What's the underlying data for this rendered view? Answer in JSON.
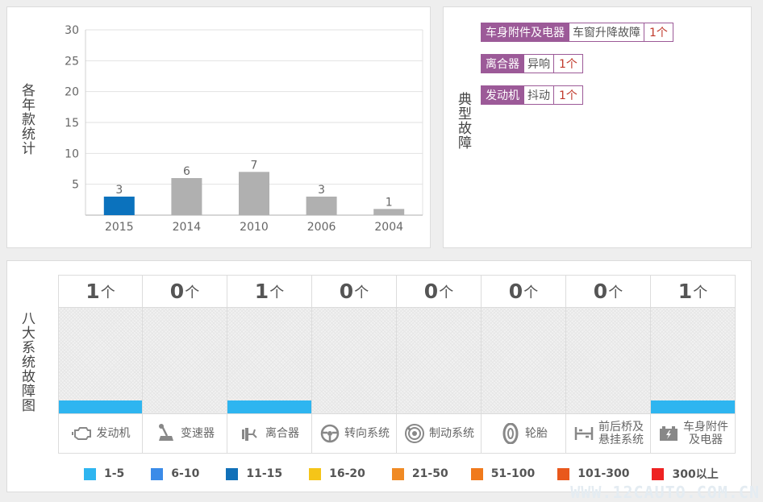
{
  "year_panel": {
    "label": "各年款统计"
  },
  "chart_data": {
    "type": "bar",
    "categories": [
      "2015",
      "2014",
      "2010",
      "2006",
      "2004"
    ],
    "values": [
      3,
      6,
      7,
      3,
      1
    ],
    "bar_colors": [
      "#0b72bd",
      "#b0b0b0",
      "#b0b0b0",
      "#b0b0b0",
      "#b0b0b0"
    ],
    "yticks": [
      5,
      10,
      15,
      20,
      25,
      30
    ],
    "ylim": [
      0,
      30
    ],
    "grid": true,
    "title": "",
    "xlabel": "",
    "ylabel": ""
  },
  "typical_panel": {
    "label": "典型故障",
    "faults": [
      {
        "category": "车身附件及电器",
        "item": "车窗升降故障",
        "count": "1个"
      },
      {
        "category": "离合器",
        "item": "异响",
        "count": "1个"
      },
      {
        "category": "发动机",
        "item": "抖动",
        "count": "1个"
      }
    ]
  },
  "systems_panel": {
    "label": "八大系统故障图",
    "unit": "个",
    "systems": [
      {
        "count": "1",
        "name": "发动机",
        "icon": "engine-icon",
        "level": 0.12
      },
      {
        "count": "0",
        "name": "变速器",
        "icon": "gearbox-icon",
        "level": 0
      },
      {
        "count": "1",
        "name": "离合器",
        "icon": "clutch-icon",
        "level": 0.12
      },
      {
        "count": "0",
        "name": "转向系统",
        "icon": "steering-wheel-icon",
        "level": 0
      },
      {
        "count": "0",
        "name": "制动系统",
        "icon": "brake-disc-icon",
        "level": 0
      },
      {
        "count": "0",
        "name": "轮胎",
        "icon": "tire-icon",
        "level": 0
      },
      {
        "count": "0",
        "name": "前后桥及悬挂系统",
        "name_lines": [
          "前后桥及",
          "悬挂系统"
        ],
        "icon": "axle-icon",
        "level": 0
      },
      {
        "count": "1",
        "name": "车身附件及电器",
        "name_lines": [
          "车身附件",
          "及电器"
        ],
        "icon": "battery-icon",
        "level": 0.12
      }
    ],
    "bar_color": "#2eb5f0"
  },
  "legend": [
    {
      "label": "1-5",
      "color": "#2eb5f0"
    },
    {
      "label": "6-10",
      "color": "#3b8be8"
    },
    {
      "label": "11-15",
      "color": "#1170b8"
    },
    {
      "label": "16-20",
      "color": "#f5c518"
    },
    {
      "label": "21-50",
      "color": "#f08a24"
    },
    {
      "label": "51-100",
      "color": "#f07a1c"
    },
    {
      "label": "101-300",
      "color": "#e9581c"
    },
    {
      "label": "300以上",
      "color": "#ee2222"
    }
  ],
  "watermark": "WWW.12CAUTO.COM.CN"
}
